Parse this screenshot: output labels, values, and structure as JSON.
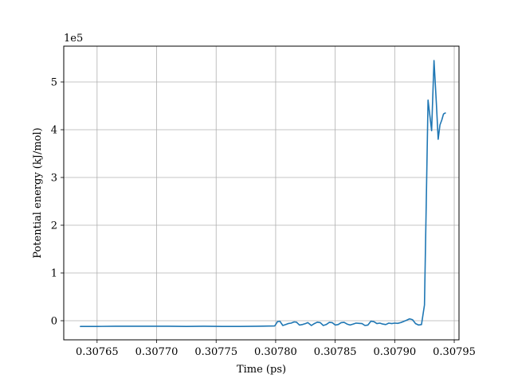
{
  "chart_data": {
    "type": "line",
    "title": "",
    "xlabel": "Time (ps)",
    "ylabel": "Potential energy (kJ/mol)",
    "y_offset_label": "1e5",
    "xlim": [
      0.307622,
      0.307954
    ],
    "ylim": [
      -0.4,
      5.75
    ],
    "grid": true,
    "x_ticks": [
      0.30765,
      0.3077,
      0.30775,
      0.3078,
      0.30785,
      0.3079,
      0.30795
    ],
    "x_tick_labels": [
      "0.30765",
      "0.30770",
      "0.30775",
      "0.30780",
      "0.30785",
      "0.30790",
      "0.30795"
    ],
    "y_ticks": [
      0,
      1,
      2,
      3,
      4,
      5
    ],
    "y_tick_labels": [
      "0",
      "1",
      "2",
      "3",
      "4",
      "5"
    ],
    "series": [
      {
        "color": "#1f77b4",
        "x": [
          0.307636,
          0.30765,
          0.307665,
          0.30768,
          0.307695,
          0.30771,
          0.307725,
          0.30774,
          0.307755,
          0.30777,
          0.307785,
          0.307799,
          0.3077995,
          0.3078015,
          0.3078035,
          0.307806,
          0.3078085,
          0.3078105,
          0.307813,
          0.3078155,
          0.3078175,
          0.30782,
          0.3078225,
          0.307825,
          0.307827,
          0.30783,
          0.3078325,
          0.307835,
          0.3078375,
          0.30784,
          0.3078425,
          0.307845,
          0.3078475,
          0.30785,
          0.3078525,
          0.307855,
          0.3078575,
          0.30786,
          0.3078625,
          0.307865,
          0.3078675,
          0.30787,
          0.3078725,
          0.307875,
          0.3078775,
          0.30788,
          0.3078825,
          0.307885,
          0.3078875,
          0.30789,
          0.3078925,
          0.307895,
          0.3078975,
          0.3079,
          0.3079025,
          0.307905,
          0.307907,
          0.30791,
          0.3079125,
          0.307915,
          0.3079175,
          0.30792,
          0.3079225,
          0.307925,
          0.307928,
          0.307931,
          0.307933,
          0.307935,
          0.3079365,
          0.307938,
          0.3079395,
          0.307941,
          0.3079425
        ],
        "y": [
          -0.12,
          -0.12,
          -0.115,
          -0.115,
          -0.115,
          -0.115,
          -0.12,
          -0.115,
          -0.12,
          -0.12,
          -0.115,
          -0.11,
          -0.1,
          -0.02,
          -0.01,
          -0.1,
          -0.08,
          -0.06,
          -0.05,
          -0.025,
          -0.03,
          -0.09,
          -0.08,
          -0.06,
          -0.04,
          -0.1,
          -0.06,
          -0.03,
          -0.04,
          -0.1,
          -0.08,
          -0.035,
          -0.04,
          -0.09,
          -0.08,
          -0.04,
          -0.035,
          -0.07,
          -0.09,
          -0.07,
          -0.05,
          -0.055,
          -0.06,
          -0.1,
          -0.09,
          -0.01,
          -0.02,
          -0.06,
          -0.05,
          -0.07,
          -0.08,
          -0.05,
          -0.06,
          -0.05,
          -0.055,
          -0.04,
          -0.02,
          0.01,
          0.04,
          0.02,
          -0.06,
          -0.09,
          -0.08,
          0.33,
          4.62,
          3.98,
          5.45,
          4.55,
          3.8,
          4.1,
          4.2,
          4.33,
          4.35
        ]
      }
    ]
  }
}
